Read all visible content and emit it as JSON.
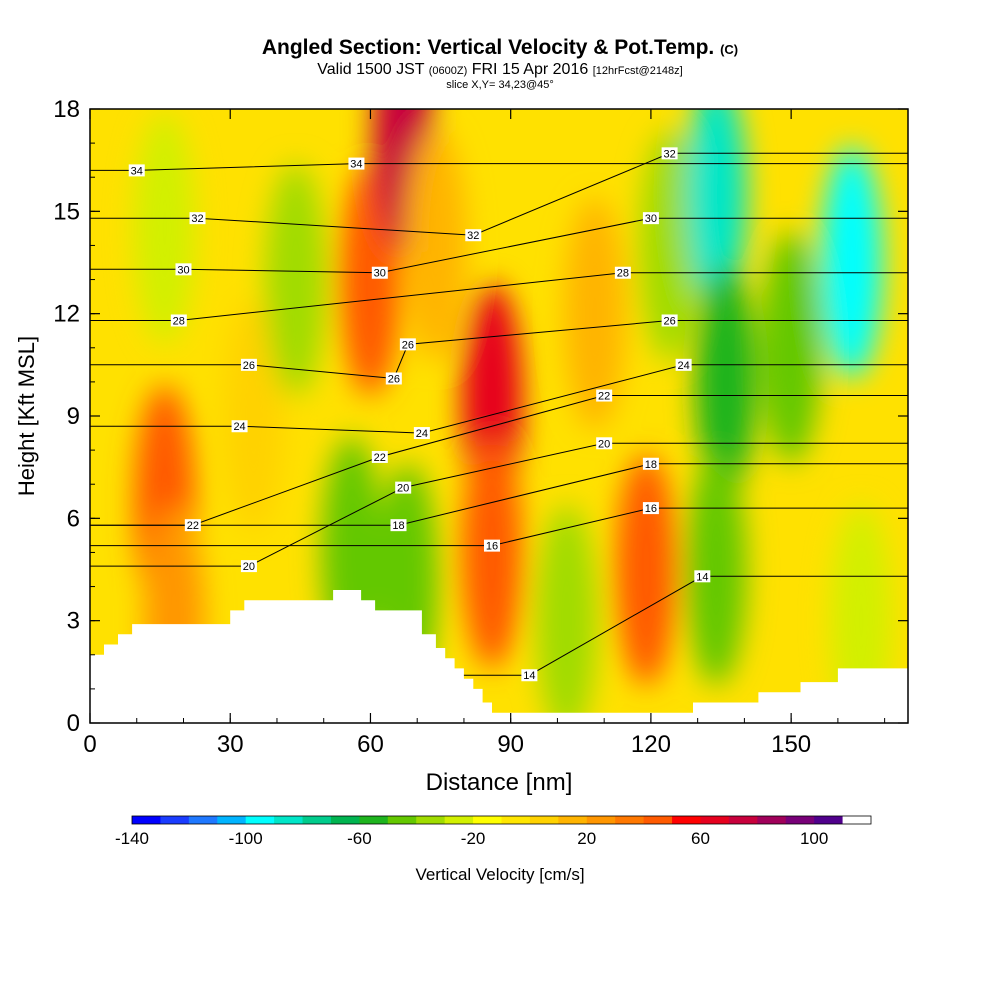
{
  "header": {
    "title_main": "Angled Section: Vertical Velocity & Pot.Temp.",
    "title_unit": "(C)",
    "valid_prefix": "Valid 1500 JST",
    "valid_utc": "(0600Z)",
    "valid_date": "FRI 15 Apr 2016",
    "valid_fcst": "[12hrFcst@2148z]",
    "slice": "slice X,Y= 34,23@45°"
  },
  "chart_data": {
    "type": "heatmap",
    "xlabel": "Distance [nm]",
    "ylabel": "Height [Kft MSL]",
    "xlim": [
      0,
      175
    ],
    "ylim": [
      0,
      18
    ],
    "x_ticks": [
      "0",
      "30",
      "60",
      "90",
      "120",
      "150"
    ],
    "y_ticks": [
      "0",
      "3",
      "6",
      "9",
      "12",
      "15",
      "18"
    ],
    "colorbar": {
      "label": "Vertical Velocity [cm/s]",
      "min": -140,
      "max": 120,
      "step": 10,
      "tick_labels": [
        "-140",
        "-100",
        "-60",
        "-20",
        "20",
        "60",
        "100"
      ],
      "colors": [
        "#0000ff",
        "#1a3cff",
        "#1f78ff",
        "#00b4ff",
        "#00ffff",
        "#00e6c8",
        "#00cc8c",
        "#00b450",
        "#1eb41e",
        "#64c800",
        "#a0dc00",
        "#d2f000",
        "#ffff00",
        "#ffe600",
        "#ffd200",
        "#ffb400",
        "#ff9600",
        "#ff7800",
        "#ff5a00",
        "#ff0000",
        "#e6001e",
        "#c8003c",
        "#a0005a",
        "#780078",
        "#50008c",
        "#ffffff"
      ]
    },
    "velocity_field": [
      {
        "x": 16,
        "y": 6.5,
        "value": 45
      },
      {
        "x": 18,
        "y": 3.0,
        "value": 20
      },
      {
        "x": 16,
        "y": 14.5,
        "value": -25
      },
      {
        "x": 35,
        "y": 9.0,
        "value": 5
      },
      {
        "x": 44,
        "y": 13.0,
        "value": -35
      },
      {
        "x": 56,
        "y": 5.0,
        "value": -45
      },
      {
        "x": 60,
        "y": 13.0,
        "value": 40
      },
      {
        "x": 67,
        "y": 17.2,
        "value": 70
      },
      {
        "x": 68,
        "y": 4.2,
        "value": -50
      },
      {
        "x": 74,
        "y": 14.0,
        "value": 15
      },
      {
        "x": 86,
        "y": 9.5,
        "value": 65
      },
      {
        "x": 86,
        "y": 5.0,
        "value": 45
      },
      {
        "x": 102,
        "y": 3.0,
        "value": -40
      },
      {
        "x": 108,
        "y": 12.0,
        "value": 10
      },
      {
        "x": 119,
        "y": 4.5,
        "value": 45
      },
      {
        "x": 124,
        "y": 14.0,
        "value": -35
      },
      {
        "x": 134,
        "y": 15.5,
        "value": -90
      },
      {
        "x": 136,
        "y": 10.0,
        "value": -60
      },
      {
        "x": 134,
        "y": 4.5,
        "value": -45
      },
      {
        "x": 150,
        "y": 11.0,
        "value": -45
      },
      {
        "x": 163,
        "y": 13.5,
        "value": -95
      },
      {
        "x": 165,
        "y": 3.0,
        "value": -25
      }
    ],
    "terrain_kft": [
      [
        0,
        2.0
      ],
      [
        3,
        2.0
      ],
      [
        3,
        2.3
      ],
      [
        6,
        2.3
      ],
      [
        6,
        2.6
      ],
      [
        9,
        2.6
      ],
      [
        9,
        2.9
      ],
      [
        30,
        2.9
      ],
      [
        30,
        3.3
      ],
      [
        33,
        3.3
      ],
      [
        33,
        3.6
      ],
      [
        52,
        3.6
      ],
      [
        52,
        3.9
      ],
      [
        58,
        3.9
      ],
      [
        58,
        3.6
      ],
      [
        61,
        3.6
      ],
      [
        61,
        3.3
      ],
      [
        71,
        3.3
      ],
      [
        71,
        2.6
      ],
      [
        74,
        2.6
      ],
      [
        74,
        2.2
      ],
      [
        76,
        2.2
      ],
      [
        76,
        1.9
      ],
      [
        78,
        1.9
      ],
      [
        78,
        1.6
      ],
      [
        80,
        1.6
      ],
      [
        80,
        1.3
      ],
      [
        82,
        1.3
      ],
      [
        82,
        1.0
      ],
      [
        84,
        1.0
      ],
      [
        84,
        0.6
      ],
      [
        86,
        0.6
      ],
      [
        86,
        0.3
      ],
      [
        129,
        0.3
      ],
      [
        129,
        0.6
      ],
      [
        143,
        0.6
      ],
      [
        143,
        0.9
      ],
      [
        152,
        0.9
      ],
      [
        152,
        1.2
      ],
      [
        160,
        1.2
      ],
      [
        160,
        1.6
      ],
      [
        175,
        1.6
      ]
    ],
    "theta_labels": [
      {
        "x": 10,
        "y": 16.2,
        "value": "34"
      },
      {
        "x": 57,
        "y": 16.4,
        "value": "34"
      },
      {
        "x": 23,
        "y": 14.8,
        "value": "32"
      },
      {
        "x": 82,
        "y": 14.3,
        "value": "32"
      },
      {
        "x": 124,
        "y": 16.7,
        "value": "32"
      },
      {
        "x": 20,
        "y": 13.3,
        "value": "30"
      },
      {
        "x": 62,
        "y": 13.2,
        "value": "30"
      },
      {
        "x": 120,
        "y": 14.8,
        "value": "30"
      },
      {
        "x": 19,
        "y": 11.8,
        "value": "28"
      },
      {
        "x": 114,
        "y": 13.2,
        "value": "28"
      },
      {
        "x": 34,
        "y": 10.5,
        "value": "26"
      },
      {
        "x": 68,
        "y": 11.1,
        "value": "26"
      },
      {
        "x": 124,
        "y": 11.8,
        "value": "26"
      },
      {
        "x": 65,
        "y": 10.1,
        "value": "26"
      },
      {
        "x": 32,
        "y": 8.7,
        "value": "24"
      },
      {
        "x": 71,
        "y": 8.5,
        "value": "24"
      },
      {
        "x": 127,
        "y": 10.5,
        "value": "24"
      },
      {
        "x": 62,
        "y": 7.8,
        "value": "22"
      },
      {
        "x": 110,
        "y": 9.6,
        "value": "22"
      },
      {
        "x": 67,
        "y": 6.9,
        "value": "20"
      },
      {
        "x": 110,
        "y": 8.2,
        "value": "20"
      },
      {
        "x": 66,
        "y": 5.8,
        "value": "18"
      },
      {
        "x": 120,
        "y": 7.6,
        "value": "18"
      },
      {
        "x": 120,
        "y": 6.3,
        "value": "16"
      },
      {
        "x": 86,
        "y": 5.2,
        "value": "16"
      },
      {
        "x": 22,
        "y": 5.8,
        "value": "22"
      },
      {
        "x": 34,
        "y": 4.6,
        "value": "20"
      },
      {
        "x": 131,
        "y": 4.3,
        "value": "14"
      },
      {
        "x": 94,
        "y": 1.4,
        "value": "14"
      }
    ]
  }
}
